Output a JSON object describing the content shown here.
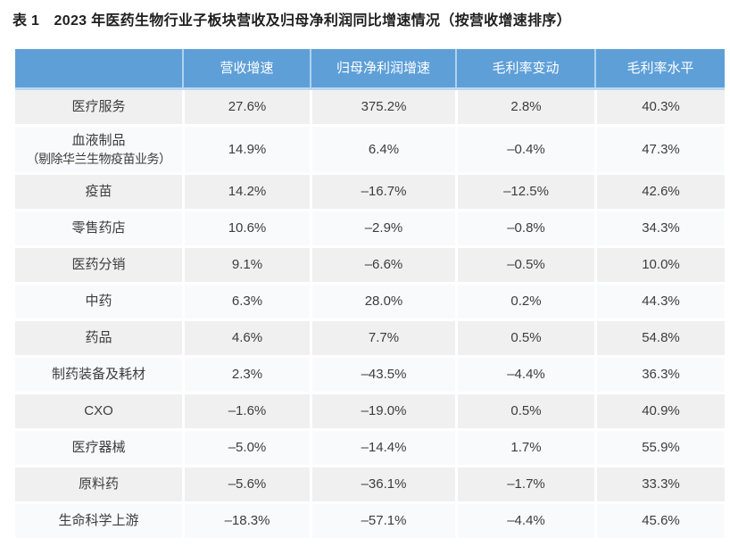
{
  "page": {
    "title": "表 1　2023 年医药生物行业子板块营收及归母净利润同比增速情况（按营收增速排序）"
  },
  "colors": {
    "header_bg": "#5E9FD8",
    "header_divider": "#AFD2EE",
    "header_text": "#FFFFFF",
    "row_odd_bg": "#F0F0F0",
    "row_even_bg": "#F8FAFC",
    "body_text": "#3D3D3D"
  },
  "table": {
    "columns": [
      "",
      "营收增速",
      "归母净利润增速",
      "毛利率变动",
      "毛利率水平"
    ],
    "rows": [
      {
        "label": "医疗服务",
        "values": [
          "27.6%",
          "375.2%",
          "2.8%",
          "40.3%"
        ]
      },
      {
        "label": "血液制品",
        "sublabel": "（剔除华兰生物疫苗业务）",
        "values": [
          "14.9%",
          "6.4%",
          "–0.4%",
          "47.3%"
        ]
      },
      {
        "label": "疫苗",
        "values": [
          "14.2%",
          "–16.7%",
          "–12.5%",
          "42.6%"
        ]
      },
      {
        "label": "零售药店",
        "values": [
          "10.6%",
          "–2.9%",
          "–0.8%",
          "34.3%"
        ]
      },
      {
        "label": "医药分销",
        "values": [
          "9.1%",
          "–6.6%",
          "–0.5%",
          "10.0%"
        ]
      },
      {
        "label": "中药",
        "values": [
          "6.3%",
          "28.0%",
          "0.2%",
          "44.3%"
        ]
      },
      {
        "label": "药品",
        "values": [
          "4.6%",
          "7.7%",
          "0.5%",
          "54.8%"
        ]
      },
      {
        "label": "制药装备及耗材",
        "values": [
          "2.3%",
          "–43.5%",
          "–4.4%",
          "36.3%"
        ]
      },
      {
        "label": "CXO",
        "values": [
          "–1.6%",
          "–19.0%",
          "0.5%",
          "40.9%"
        ]
      },
      {
        "label": "医疗器械",
        "values": [
          "–5.0%",
          "–14.4%",
          "1.7%",
          "55.9%"
        ]
      },
      {
        "label": "原料药",
        "values": [
          "–5.6%",
          "–36.1%",
          "–1.7%",
          "33.3%"
        ]
      },
      {
        "label": "生命科学上游",
        "values": [
          "–18.3%",
          "–57.1%",
          "–4.4%",
          "45.6%"
        ]
      }
    ]
  }
}
